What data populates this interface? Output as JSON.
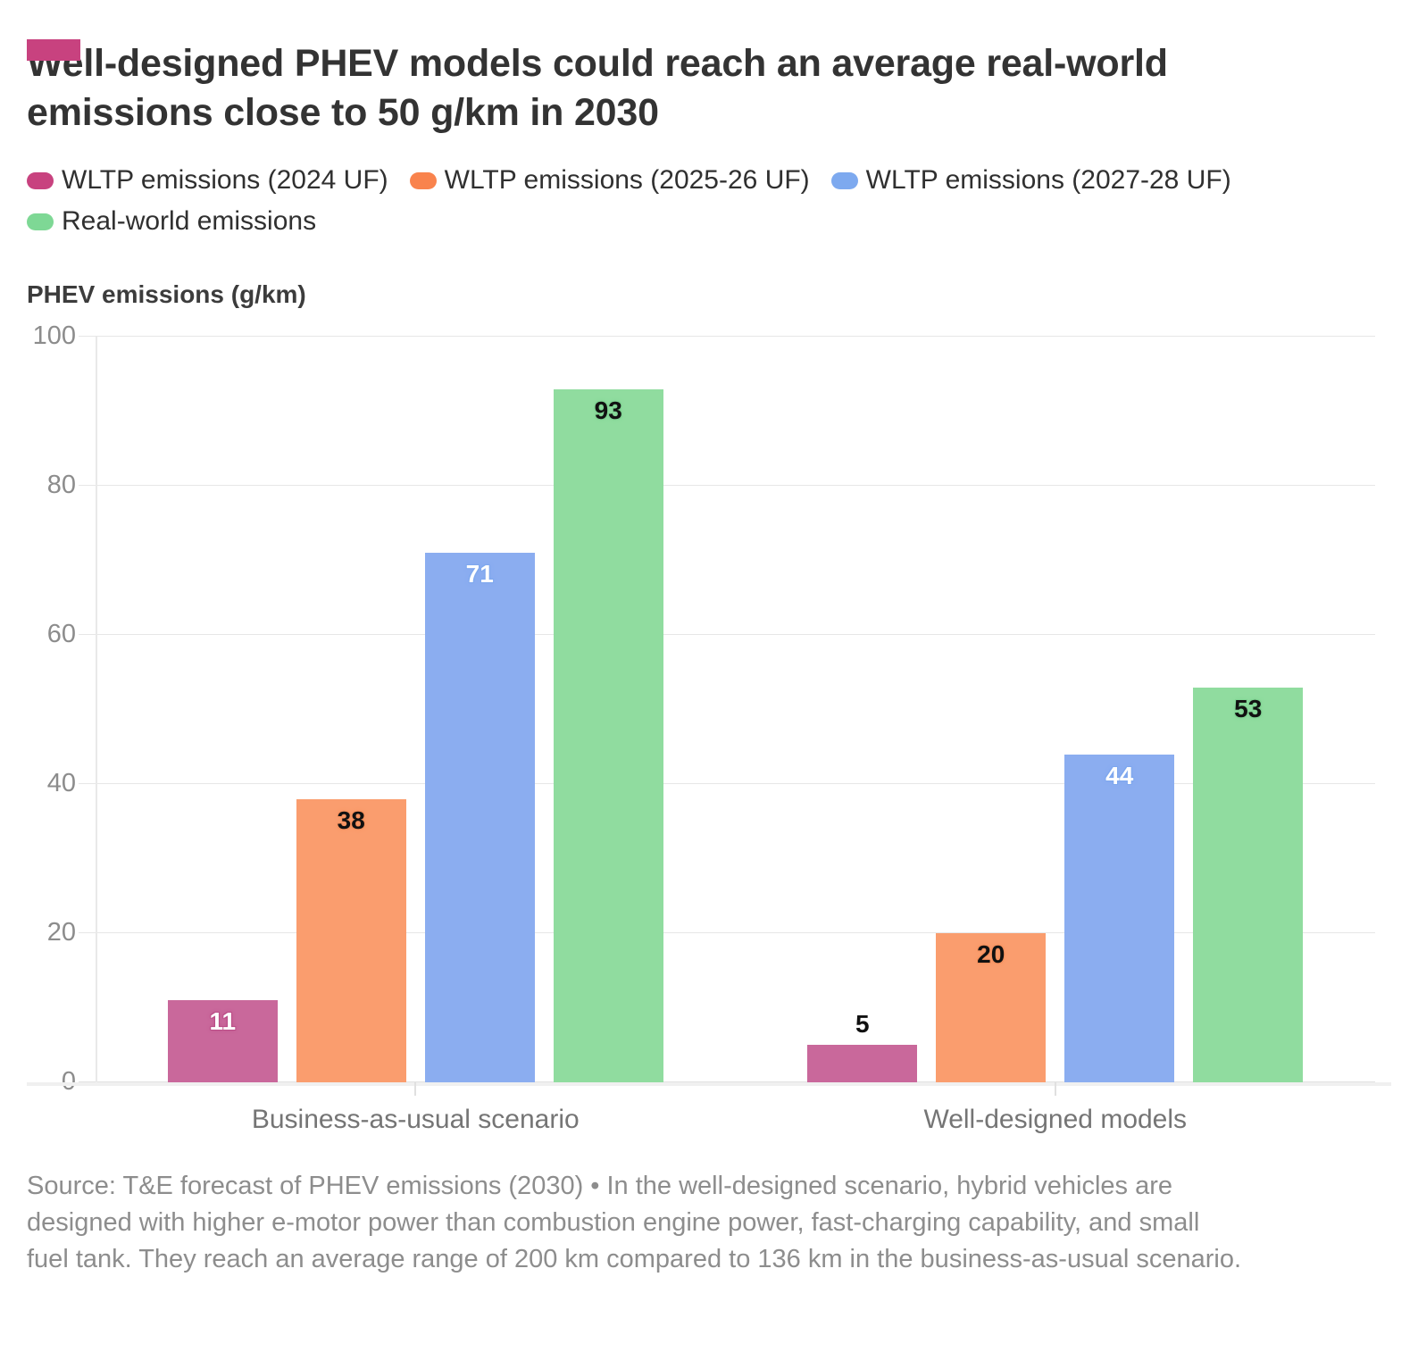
{
  "header": {
    "title": "Well-designed PHEV models could reach an average real-world emissions close to 50 g/km in 2030"
  },
  "brand_color": "#c8427f",
  "chart_data": {
    "type": "bar",
    "title": "Well-designed PHEV models could reach an average real-world emissions close to 50 g/km in 2030",
    "axis_title": "PHEV emissions (g/km)",
    "categories": [
      "Business-as-usual scenario",
      "Well-designed models"
    ],
    "series": [
      {
        "name": "WLTP emissions (2024 UF)",
        "values": [
          11,
          5
        ],
        "legend_color": "#c8427f",
        "bar_color": "#c9689b",
        "label_color": "#ffffff",
        "label_halo": "#bb4d87"
      },
      {
        "name": "WLTP emissions (2025-26 UF)",
        "values": [
          38,
          20
        ],
        "legend_color": "#f9834d",
        "bar_color": "#fa9d6e",
        "label_color": "#111111",
        "label_halo": "#f5915e"
      },
      {
        "name": "WLTP emissions (2027-28 UF)",
        "values": [
          71,
          44
        ],
        "legend_color": "#7da9ef",
        "bar_color": "#8badf0",
        "label_color": "#ffffff",
        "label_halo": "#7ea7ee"
      },
      {
        "name": "Real-world emissions",
        "values": [
          93,
          53
        ],
        "legend_color": "#7ed895",
        "bar_color": "#90dc9f",
        "label_color": "#111111",
        "label_halo": "#7fd392"
      }
    ],
    "y_ticks": [
      0,
      20,
      40,
      60,
      80,
      100
    ],
    "ylim": [
      0,
      100
    ],
    "grid": true,
    "legend_position": "top",
    "outside_label_color": "#111111",
    "outside_label_halo": "#ffffff"
  },
  "footer": {
    "source": "Source: T&E forecast of PHEV emissions (2030) • In the well-designed scenario, hybrid vehicles are designed with higher e-motor power than combustion engine power, fast-charging capability, and small fuel tank. They reach an average range of 200 km compared to 136 km in the business-as-usual scenario."
  }
}
